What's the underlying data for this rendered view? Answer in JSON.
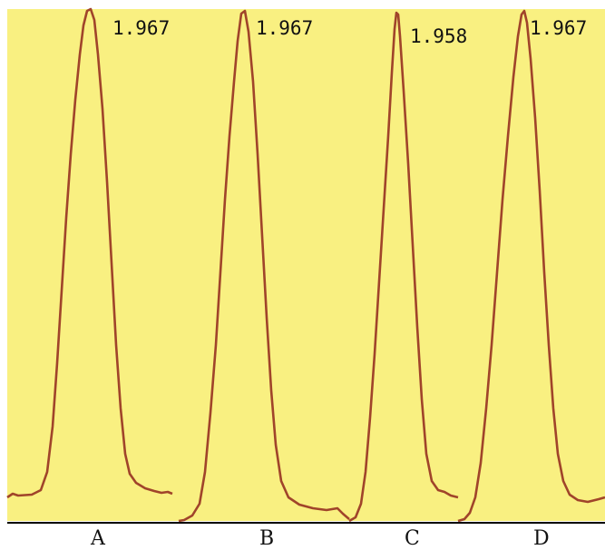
{
  "chart_data": {
    "type": "line",
    "categories": [
      "A",
      "B",
      "C",
      "D"
    ],
    "peak_values": [
      "1.967",
      "1.967",
      "1.958",
      "1.967"
    ],
    "grid": false,
    "legend": "none",
    "colors": {
      "background": "#f9f081",
      "trace": "#a0442a",
      "baseline": "#000000",
      "text": "#111111"
    }
  }
}
